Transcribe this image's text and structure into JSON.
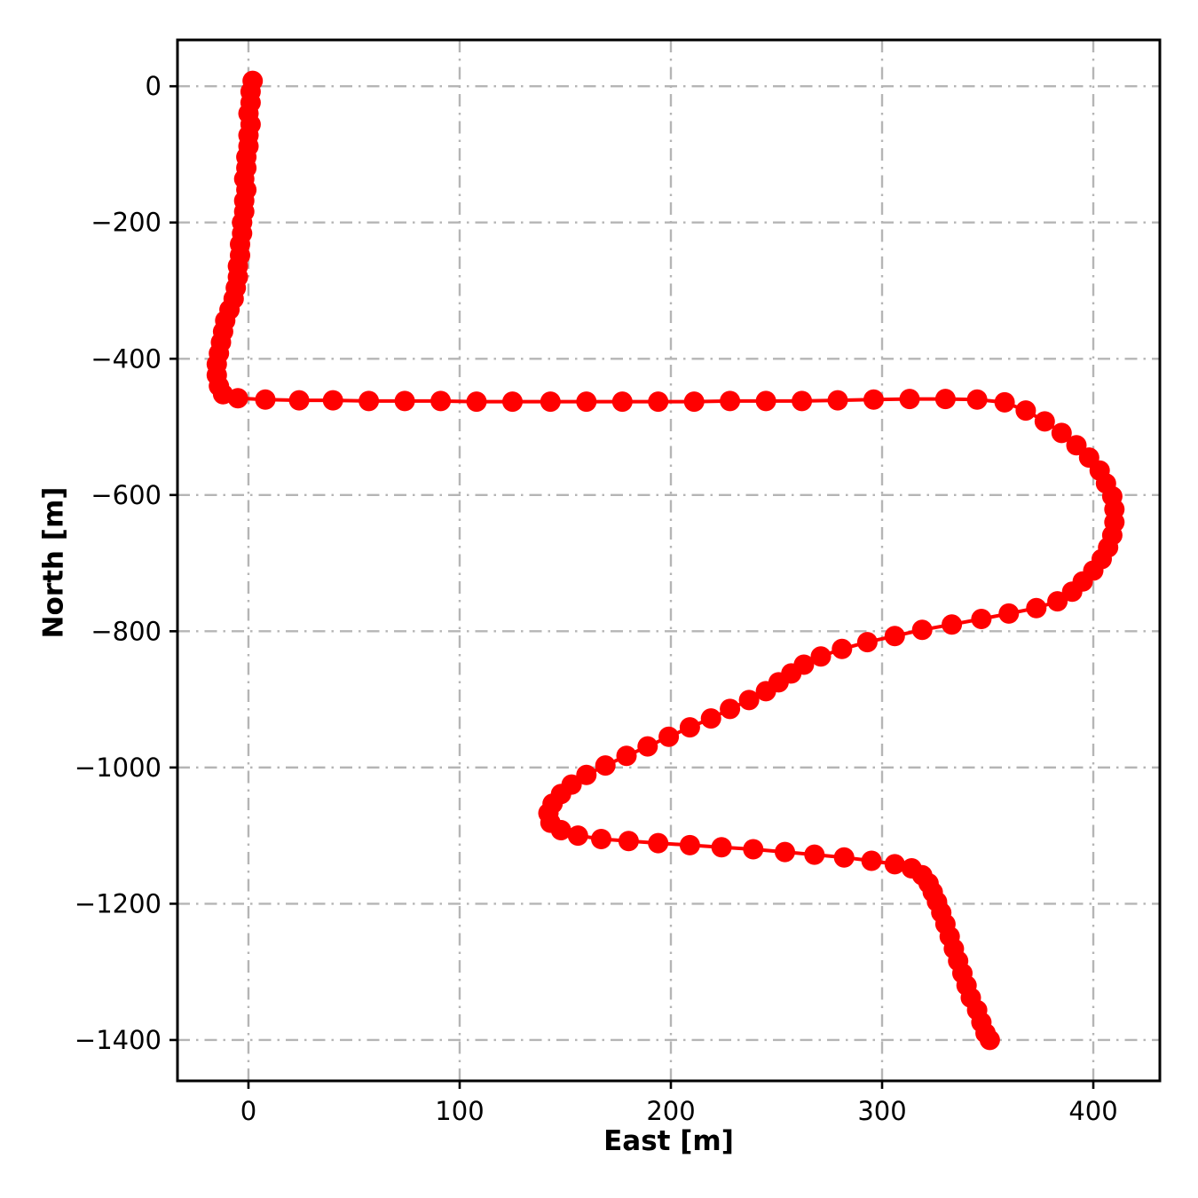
{
  "chart_data": {
    "type": "scatter",
    "title": "",
    "xlabel": "East [m]",
    "ylabel": "North [m]",
    "xlim": [
      -33.6,
      431.5
    ],
    "ylim": [
      -1460,
      68
    ],
    "grid": true,
    "grid_linestyle": "dashdot",
    "legend_position": "none",
    "xticks": {
      "values": [
        0,
        100,
        200,
        300,
        400
      ],
      "labels": [
        "0",
        "100",
        "200",
        "300",
        "400"
      ]
    },
    "yticks": {
      "values": [
        0,
        -200,
        -400,
        -600,
        -800,
        -1000,
        -1200,
        -1400
      ],
      "labels": [
        "0",
        "−200",
        "−400",
        "−600",
        "−800",
        "−1000",
        "−1200",
        "−1400"
      ]
    },
    "colors": {
      "series": "#ff0000",
      "grid": "#b5b5b5",
      "frame": "#000000",
      "background": "#ffffff",
      "text": "#000000"
    },
    "series": [
      {
        "name": "vehicle-trajectory",
        "marker": "circle",
        "marker_radius": 11.5,
        "line_width": 4,
        "points": [
          [
            2,
            8
          ],
          [
            1,
            -8
          ],
          [
            1,
            -24
          ],
          [
            0,
            -40
          ],
          [
            1,
            -56
          ],
          [
            0,
            -72
          ],
          [
            0,
            -88
          ],
          [
            -1,
            -104
          ],
          [
            -1,
            -120
          ],
          [
            -2,
            -136
          ],
          [
            -1,
            -152
          ],
          [
            -2,
            -168
          ],
          [
            -2,
            -184
          ],
          [
            -3,
            -200
          ],
          [
            -3,
            -216
          ],
          [
            -4,
            -232
          ],
          [
            -4,
            -248
          ],
          [
            -5,
            -264
          ],
          [
            -5,
            -280
          ],
          [
            -6,
            -296
          ],
          [
            -7,
            -312
          ],
          [
            -9,
            -328
          ],
          [
            -11,
            -344
          ],
          [
            -12,
            -360
          ],
          [
            -13,
            -376
          ],
          [
            -14,
            -392
          ],
          [
            -15,
            -408
          ],
          [
            -15,
            -424
          ],
          [
            -14,
            -440
          ],
          [
            -12,
            -452
          ],
          [
            -5,
            -458
          ],
          [
            8,
            -460
          ],
          [
            24,
            -461
          ],
          [
            40,
            -461
          ],
          [
            57,
            -462
          ],
          [
            74,
            -462
          ],
          [
            91,
            -462
          ],
          [
            108,
            -463
          ],
          [
            125,
            -463
          ],
          [
            143,
            -463
          ],
          [
            160,
            -463
          ],
          [
            177,
            -463
          ],
          [
            194,
            -463
          ],
          [
            211,
            -463
          ],
          [
            228,
            -462
          ],
          [
            245,
            -462
          ],
          [
            262,
            -462
          ],
          [
            279,
            -461
          ],
          [
            296,
            -460
          ],
          [
            313,
            -459
          ],
          [
            330,
            -459
          ],
          [
            345,
            -460
          ],
          [
            358,
            -464
          ],
          [
            368,
            -476
          ],
          [
            377,
            -492
          ],
          [
            385,
            -509
          ],
          [
            392,
            -527
          ],
          [
            398,
            -545
          ],
          [
            403,
            -564
          ],
          [
            406,
            -583
          ],
          [
            409,
            -602
          ],
          [
            410,
            -621
          ],
          [
            410,
            -640
          ],
          [
            409,
            -659
          ],
          [
            407,
            -677
          ],
          [
            404,
            -694
          ],
          [
            400,
            -711
          ],
          [
            395,
            -727
          ],
          [
            390,
            -742
          ],
          [
            383,
            -756
          ],
          [
            373,
            -766
          ],
          [
            360,
            -774
          ],
          [
            347,
            -782
          ],
          [
            333,
            -790
          ],
          [
            319,
            -798
          ],
          [
            306,
            -807
          ],
          [
            293,
            -816
          ],
          [
            281,
            -826
          ],
          [
            271,
            -837
          ],
          [
            263,
            -849
          ],
          [
            257,
            -862
          ],
          [
            251,
            -875
          ],
          [
            245,
            -888
          ],
          [
            237,
            -901
          ],
          [
            228,
            -914
          ],
          [
            219,
            -928
          ],
          [
            209,
            -941
          ],
          [
            199,
            -955
          ],
          [
            189,
            -969
          ],
          [
            179,
            -983
          ],
          [
            169,
            -997
          ],
          [
            160,
            -1011
          ],
          [
            153,
            -1025
          ],
          [
            148,
            -1039
          ],
          [
            144,
            -1053
          ],
          [
            142,
            -1067
          ],
          [
            143,
            -1081
          ],
          [
            148,
            -1092
          ],
          [
            156,
            -1100
          ],
          [
            167,
            -1105
          ],
          [
            180,
            -1108
          ],
          [
            194,
            -1111
          ],
          [
            209,
            -1114
          ],
          [
            224,
            -1117
          ],
          [
            239,
            -1120
          ],
          [
            254,
            -1124
          ],
          [
            268,
            -1128
          ],
          [
            282,
            -1132
          ],
          [
            295,
            -1137
          ],
          [
            306,
            -1142
          ],
          [
            314,
            -1148
          ],
          [
            319,
            -1158
          ],
          [
            322,
            -1170
          ],
          [
            324,
            -1183
          ],
          [
            326,
            -1197
          ],
          [
            328,
            -1213
          ],
          [
            330,
            -1230
          ],
          [
            332,
            -1248
          ],
          [
            334,
            -1266
          ],
          [
            336,
            -1284
          ],
          [
            338,
            -1302
          ],
          [
            340,
            -1320
          ],
          [
            342,
            -1338
          ],
          [
            345,
            -1356
          ],
          [
            347,
            -1374
          ],
          [
            349,
            -1390
          ],
          [
            351,
            -1400
          ]
        ]
      }
    ]
  }
}
